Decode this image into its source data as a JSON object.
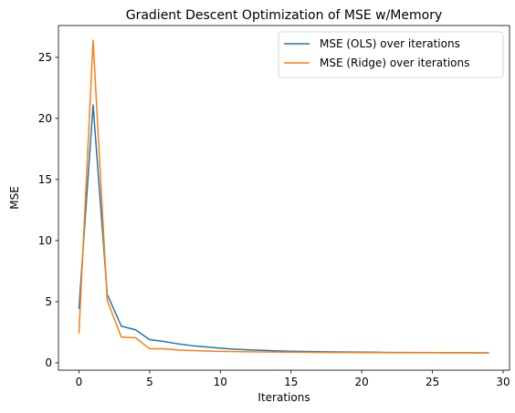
{
  "chart_data": {
    "type": "line",
    "title": "Gradient Descent Optimization of MSE w/Memory",
    "xlabel": "Iterations",
    "ylabel": "MSE",
    "xlim": [
      -1.45,
      30.45
    ],
    "ylim": [
      -0.6,
      27.6
    ],
    "xticks": [
      0,
      5,
      10,
      15,
      20,
      25,
      30
    ],
    "yticks": [
      0,
      5,
      10,
      15,
      20,
      25
    ],
    "grid": false,
    "legend_position": "top-right",
    "x": [
      0,
      1,
      2,
      3,
      4,
      5,
      6,
      7,
      8,
      9,
      10,
      11,
      12,
      13,
      14,
      15,
      16,
      17,
      18,
      19,
      20,
      21,
      22,
      23,
      24,
      25,
      26,
      27,
      28,
      29
    ],
    "series": [
      {
        "name": "MSE (OLS) over iterations",
        "color": "#1f77b4",
        "values": [
          4.4,
          21.1,
          5.6,
          3.0,
          2.7,
          1.9,
          1.75,
          1.55,
          1.4,
          1.3,
          1.2,
          1.12,
          1.06,
          1.02,
          0.98,
          0.95,
          0.93,
          0.91,
          0.89,
          0.88,
          0.87,
          0.86,
          0.85,
          0.845,
          0.84,
          0.835,
          0.83,
          0.825,
          0.82,
          0.82
        ]
      },
      {
        "name": "MSE (Ridge) over iterations",
        "color": "#ff7f0e",
        "values": [
          2.4,
          26.4,
          5.1,
          2.1,
          2.05,
          1.15,
          1.15,
          1.05,
          1.0,
          0.97,
          0.94,
          0.92,
          0.9,
          0.89,
          0.88,
          0.87,
          0.86,
          0.855,
          0.85,
          0.845,
          0.84,
          0.835,
          0.83,
          0.828,
          0.826,
          0.824,
          0.822,
          0.82,
          0.82,
          0.82
        ]
      }
    ]
  }
}
